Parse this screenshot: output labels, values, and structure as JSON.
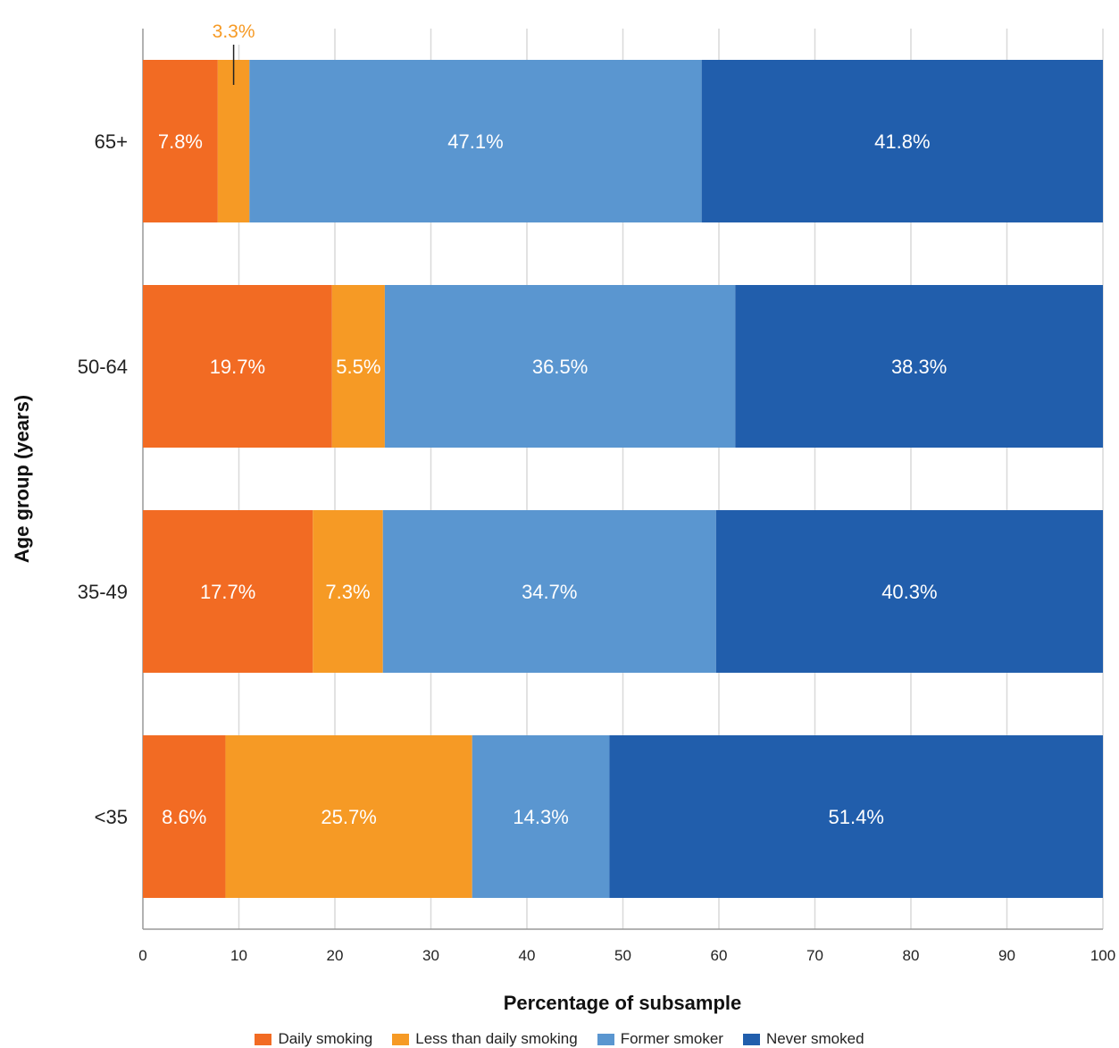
{
  "chart_data": {
    "type": "bar",
    "orientation": "horizontal",
    "stacked": true,
    "categories": [
      "65+",
      "50-64",
      "35-49",
      "<35"
    ],
    "series": [
      {
        "name": "Daily smoking",
        "color": "#F26B23",
        "values": [
          7.8,
          19.7,
          17.7,
          8.6
        ],
        "labels": [
          "7.8%",
          "19.7%",
          "17.7%",
          "8.6%"
        ]
      },
      {
        "name": "Less than daily smoking",
        "color": "#F69A25",
        "values": [
          3.3,
          5.5,
          7.3,
          25.7
        ],
        "labels": [
          "",
          "5.5%",
          "7.3%",
          "25.7%"
        ]
      },
      {
        "name": "Former smoker",
        "color": "#5A96D0",
        "values": [
          47.1,
          36.5,
          34.7,
          14.3
        ],
        "labels": [
          "47.1%",
          "36.5%",
          "34.7%",
          "14.3%"
        ]
      },
      {
        "name": "Never smoked",
        "color": "#215EAC",
        "values": [
          41.8,
          38.3,
          40.3,
          51.4
        ],
        "labels": [
          "41.8%",
          "38.3%",
          "40.3%",
          "51.4%"
        ]
      }
    ],
    "callout": {
      "text": "3.3%",
      "category": "65+",
      "series": "Less than daily smoking",
      "color": "#F69A25"
    },
    "xlabel": "Percentage of subsample",
    "ylabel": "Age group (years)",
    "xlim": [
      0,
      100
    ],
    "xticks": [
      "0",
      "10",
      "20",
      "30",
      "40",
      "50",
      "60",
      "70",
      "80",
      "90",
      "100"
    ],
    "grid": true,
    "legend_position": "bottom"
  }
}
